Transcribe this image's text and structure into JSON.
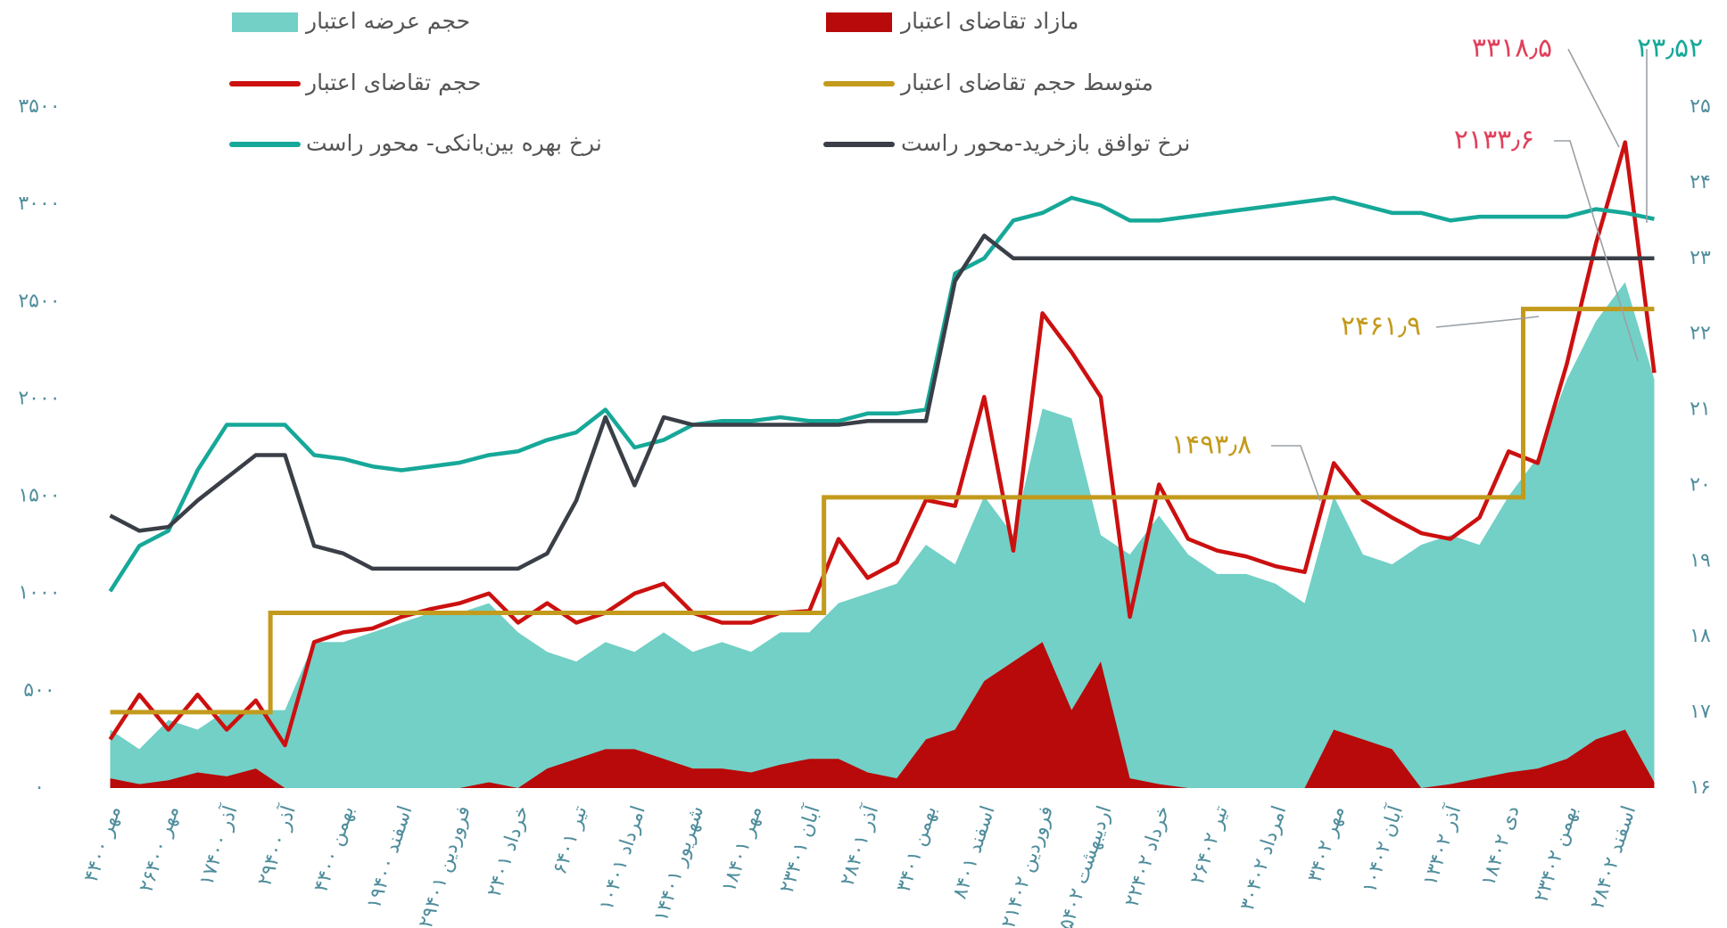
{
  "chart_data": {
    "type": "combo",
    "categories": [
      "۴مهر ۴۰۰",
      null,
      "۲۶مهر ۴۰۰",
      null,
      "۱۷آذر ۴۰۰",
      null,
      "۲۹آذر ۴۰۰",
      null,
      "۴بهمن ۴۰۰",
      null,
      "۱۹اسفند ۴۰۰",
      null,
      "۲۹فروردین ۴۰۱",
      null,
      "۲خرداد ۴۰۱",
      null,
      "۶تیر ۴۰۱",
      null,
      "۱۰امرداد ۴۰۱",
      null,
      "۱۴شهریور ۴۰۱",
      null,
      "۱۸مهر ۴۰۱",
      null,
      "۲۳آبان ۴۰۱",
      null,
      "۲۸آذر ۴۰۱",
      null,
      "۳بهمن ۴۰۱",
      null,
      "۸اسفند ۴۰۱",
      null,
      "۲۱فروردین ۴۰۲",
      null,
      "۲۵اردیبهشت ۴۰۲",
      null,
      "۲۲خرداد ۴۰۲",
      null,
      "۲۶تیر ۴۰۲",
      null,
      "۳۰امرداد ۴۰۲",
      null,
      "۳مهر ۴۰۲",
      null,
      "۱۰آبان ۴۰۲",
      null,
      "۱۳آذر ۴۰۲",
      null,
      "۱۸دی ۴۰۲",
      null,
      "۲۳بهمن ۴۰۲",
      null,
      "۲۸اسفند ۴۰۲",
      null
    ],
    "series": [
      {
        "name": "حجم عرضه اعتبار",
        "kind": "area",
        "color": "#72d0c6",
        "values": [
          300,
          200,
          350,
          300,
          400,
          400,
          400,
          750,
          750,
          800,
          850,
          900,
          900,
          950,
          800,
          700,
          650,
          750,
          700,
          800,
          700,
          750,
          700,
          800,
          800,
          950,
          1000,
          1050,
          1250,
          1150,
          1500,
          1300,
          1950,
          1900,
          1300,
          1200,
          1400,
          1200,
          1100,
          1100,
          1050,
          950,
          1500,
          1200,
          1150,
          1250,
          1300,
          1250,
          1500,
          1700,
          2100,
          2400,
          2600,
          2100
        ]
      },
      {
        "name": "مازاد تقاضای اعتبار",
        "kind": "area",
        "color": "#b80a0a",
        "values": [
          50,
          20,
          40,
          80,
          60,
          100,
          0,
          0,
          0,
          0,
          0,
          0,
          0,
          30,
          0,
          100,
          150,
          200,
          200,
          150,
          100,
          100,
          80,
          120,
          150,
          150,
          80,
          50,
          250,
          300,
          550,
          650,
          750,
          400,
          650,
          50,
          20,
          0,
          0,
          0,
          0,
          0,
          300,
          250,
          200,
          0,
          20,
          50,
          80,
          100,
          150,
          250,
          300,
          30
        ]
      },
      {
        "name": "حجم تقاضای اعتبار",
        "kind": "line",
        "color": "#cc1010",
        "values": [
          250,
          480,
          300,
          480,
          300,
          450,
          220,
          750,
          800,
          820,
          880,
          920,
          950,
          1000,
          850,
          950,
          850,
          900,
          1000,
          1050,
          900,
          850,
          850,
          900,
          910,
          1280,
          1080,
          1160,
          1480,
          1450,
          2010,
          1220,
          2440,
          2240,
          2010,
          880,
          1560,
          1280,
          1220,
          1190,
          1140,
          1110,
          1670,
          1480,
          1390,
          1310,
          1280,
          1390,
          1730,
          1670,
          2180,
          2800,
          3318.5,
          2133.6
        ]
      },
      {
        "name": "متوسط حجم تقاضای اعتبار",
        "kind": "step",
        "color": "#c39a1c",
        "values": [
          390,
          390,
          390,
          390,
          390,
          390,
          900,
          900,
          900,
          900,
          900,
          900,
          900,
          900,
          900,
          900,
          900,
          900,
          900,
          900,
          900,
          900,
          900,
          900,
          900,
          1493.8,
          1493.8,
          1493.8,
          1493.8,
          1493.8,
          1493.8,
          1493.8,
          1493.8,
          1493.8,
          1493.8,
          1493.8,
          1493.8,
          1493.8,
          1493.8,
          1493.8,
          1493.8,
          1493.8,
          1493.8,
          1493.8,
          1493.8,
          1493.8,
          1493.8,
          1493.8,
          1493.8,
          2461.9,
          2461.9,
          2461.9,
          2461.9,
          2461.9
        ]
      },
      {
        "name": "نرخ بهره بین‌بانکی- محور راست",
        "kind": "line",
        "axis": "y2",
        "color": "#16a898",
        "values": [
          18.6,
          19.2,
          19.4,
          20.2,
          20.8,
          20.8,
          20.8,
          20.4,
          20.35,
          20.25,
          20.2,
          20.25,
          20.3,
          20.4,
          20.45,
          20.6,
          20.7,
          21.0,
          20.5,
          20.6,
          20.8,
          20.85,
          20.85,
          20.9,
          20.85,
          20.85,
          20.95,
          20.95,
          21.0,
          22.8,
          23.0,
          23.5,
          23.6,
          23.8,
          23.7,
          23.5,
          23.5,
          23.55,
          23.6,
          23.65,
          23.7,
          23.75,
          23.8,
          23.7,
          23.6,
          23.6,
          23.5,
          23.55,
          23.55,
          23.55,
          23.55,
          23.65,
          23.6,
          23.52
        ]
      },
      {
        "name": "نرخ توافق بازخرید-محور راست",
        "kind": "line",
        "axis": "y2",
        "color": "#3a3f47",
        "values": [
          19.6,
          19.4,
          19.45,
          19.8,
          20.1,
          20.4,
          20.4,
          19.2,
          19.1,
          18.9,
          18.9,
          18.9,
          18.9,
          18.9,
          18.9,
          19.1,
          19.8,
          20.9,
          20.0,
          20.9,
          20.8,
          20.8,
          20.8,
          20.8,
          20.8,
          20.8,
          20.85,
          20.85,
          20.85,
          22.7,
          23.3,
          23.0,
          23.0,
          23.0,
          23.0,
          23.0,
          23.0,
          23.0,
          23.0,
          23.0,
          23.0,
          23.0,
          23.0,
          23.0,
          23.0,
          23.0,
          23.0,
          23.0,
          23.0,
          23.0,
          23.0,
          23.0,
          23.0,
          23.0
        ]
      }
    ],
    "ylim": [
      0,
      3500
    ],
    "yticks": [
      {
        "value": 0,
        "label": "۰"
      },
      {
        "value": 500,
        "label": "۵۰۰"
      },
      {
        "value": 1000,
        "label": "۱۰۰۰"
      },
      {
        "value": 1500,
        "label": "۱۵۰۰"
      },
      {
        "value": 2000,
        "label": "۲۰۰۰"
      },
      {
        "value": 2500,
        "label": "۲۵۰۰"
      },
      {
        "value": 3000,
        "label": "۳۰۰۰"
      },
      {
        "value": 3500,
        "label": "۳۵۰۰"
      }
    ],
    "y2lim": [
      16,
      25
    ],
    "y2ticks": [
      {
        "value": 16,
        "label": "۱۶"
      },
      {
        "value": 17,
        "label": "۱۷"
      },
      {
        "value": 18,
        "label": "۱۸"
      },
      {
        "value": 19,
        "label": "۱۹"
      },
      {
        "value": 20,
        "label": "۲۰"
      },
      {
        "value": 21,
        "label": "۲۱"
      },
      {
        "value": 22,
        "label": "۲۲"
      },
      {
        "value": 23,
        "label": "۲۳"
      },
      {
        "value": 24,
        "label": "۲۴"
      },
      {
        "value": 25,
        "label": "۲۵"
      }
    ],
    "annotations": [
      {
        "text": "۳۳۱۸٫۵",
        "color": "#e0405a"
      },
      {
        "text": "۲۳٫۵۲",
        "color": "#16a898"
      },
      {
        "text": "۲۱۳۳٫۶",
        "color": "#e0405a"
      },
      {
        "text": "۲۴۶۱٫۹",
        "color": "#c39a1c"
      },
      {
        "text": "۱۴۹۳٫۸",
        "color": "#c39a1c"
      }
    ]
  }
}
